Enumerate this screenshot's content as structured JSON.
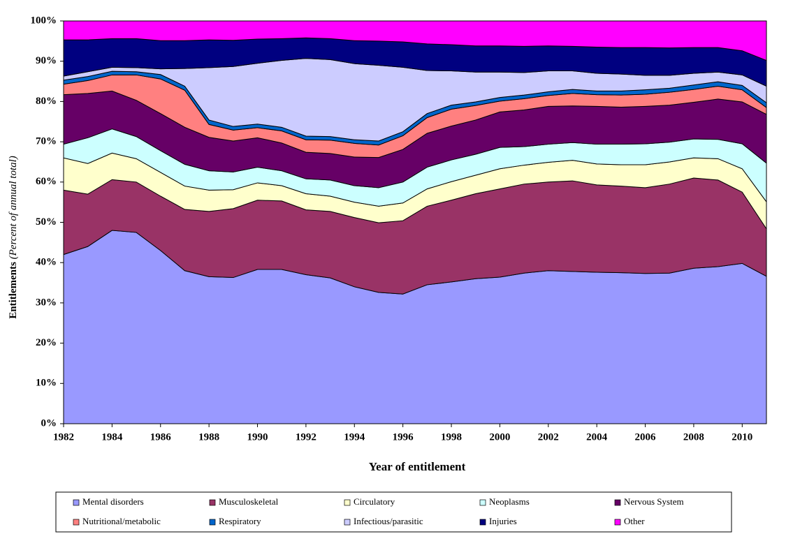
{
  "chart_data": {
    "type": "stacked_area_percent",
    "xlabel": "Year of entitlement",
    "ylabel": "Entitlements",
    "ylabel_unit": "(Percent of annual total)",
    "x": [
      1982,
      1983,
      1984,
      1985,
      1986,
      1987,
      1988,
      1989,
      1990,
      1991,
      1992,
      1993,
      1994,
      1995,
      1996,
      1997,
      1998,
      1999,
      2000,
      2001,
      2002,
      2003,
      2004,
      2005,
      2006,
      2007,
      2008,
      2009,
      2010,
      2011
    ],
    "xlim": [
      1982,
      2011
    ],
    "xticks": [
      1982,
      1984,
      1986,
      1988,
      1990,
      1992,
      1994,
      1996,
      1998,
      2000,
      2002,
      2004,
      2006,
      2008,
      2010
    ],
    "ylim": [
      0,
      100
    ],
    "yticks": [
      {
        "value": 0,
        "label": "0%"
      },
      {
        "value": 10,
        "label": "10%"
      },
      {
        "value": 20,
        "label": "20%"
      },
      {
        "value": 30,
        "label": "30%"
      },
      {
        "value": 40,
        "label": "40%"
      },
      {
        "value": 50,
        "label": "50%"
      },
      {
        "value": 60,
        "label": "60%"
      },
      {
        "value": 70,
        "label": "70%"
      },
      {
        "value": 80,
        "label": "80%"
      },
      {
        "value": 90,
        "label": "90%"
      },
      {
        "value": 100,
        "label": "100%"
      }
    ],
    "legend": "bottom",
    "series": [
      {
        "name": "Mental disorders",
        "color": "#9999ff",
        "values": [
          42,
          44,
          48,
          47.5,
          43,
          38,
          36.5,
          36.3,
          38.3,
          38.3,
          37,
          36.2,
          34,
          32.6,
          32.2,
          34.5,
          35.2,
          36,
          36.4,
          37.4,
          38,
          37.8,
          37.6,
          37.5,
          37.3,
          37.4,
          38.6,
          39,
          39.8,
          36.6
        ]
      },
      {
        "name": "Musculoskeletal",
        "color": "#993366",
        "values": [
          16,
          13,
          12.6,
          12.5,
          13.5,
          15.2,
          16.2,
          17.1,
          17.2,
          17,
          16.1,
          16.5,
          17.2,
          17.3,
          18.2,
          19.5,
          20.3,
          21.1,
          21.9,
          22.1,
          22,
          22.5,
          21.7,
          21.5,
          21.3,
          22.1,
          22.4,
          21.5,
          17.7,
          11.8
        ]
      },
      {
        "name": "Circulatory",
        "color": "#ffffcc",
        "values": [
          8,
          7.6,
          6.6,
          5.8,
          5.9,
          5.8,
          5.3,
          4.7,
          4.3,
          3.8,
          4,
          3.8,
          3.8,
          4.1,
          4.4,
          4.3,
          4.6,
          4.6,
          5,
          4.7,
          4.9,
          5.1,
          5.2,
          5.3,
          5.7,
          5.5,
          5,
          5.3,
          5.8,
          6.7
        ]
      },
      {
        "name": "Neoplasms",
        "color": "#ccffff",
        "values": [
          3.4,
          6.4,
          6,
          5.5,
          5.4,
          5.4,
          4.8,
          4.4,
          3.9,
          3.7,
          3.7,
          4,
          4.1,
          4.6,
          5.2,
          5.4,
          5.4,
          5.2,
          5.3,
          4.6,
          4.5,
          4.4,
          4.9,
          5.1,
          5.2,
          4.9,
          4.7,
          4.8,
          6.2,
          9.6
        ]
      },
      {
        "name": "Nervous System",
        "color": "#660066",
        "values": [
          12.3,
          11,
          9.4,
          9,
          9.2,
          9.2,
          8.3,
          7.7,
          7.3,
          6.9,
          6.6,
          6.6,
          7.1,
          7.5,
          8.1,
          8.4,
          8.4,
          8.5,
          8.8,
          9.1,
          9.4,
          9.1,
          9.4,
          9.2,
          9.3,
          9.2,
          9.1,
          10,
          10.4,
          12.1
        ]
      },
      {
        "name": "Nutritional/metabolic",
        "color": "#ff8080",
        "values": [
          2.6,
          3.2,
          4,
          6.3,
          8.6,
          9.2,
          3.2,
          2.7,
          2.5,
          3,
          3.1,
          3.3,
          3.4,
          3.1,
          3.4,
          3.9,
          4.2,
          3.6,
          2.7,
          2.8,
          2.7,
          3.1,
          2.9,
          3,
          3,
          3.2,
          3.2,
          3.2,
          3,
          1.7
        ]
      },
      {
        "name": "Respiratory",
        "color": "#0066cc",
        "values": [
          1,
          1,
          0.9,
          0.8,
          1.1,
          1,
          1.1,
          0.9,
          0.9,
          0.9,
          0.9,
          0.9,
          0.9,
          1,
          1,
          1,
          1,
          0.9,
          0.9,
          0.9,
          0.9,
          1,
          0.9,
          1,
          1.1,
          1,
          1.1,
          1.1,
          1.1,
          1.2
        ]
      },
      {
        "name": "Infectious/parasitic",
        "color": "#ccccff",
        "values": [
          1,
          1.2,
          1,
          1,
          1.4,
          4.4,
          13,
          14.9,
          15.1,
          16.6,
          19.3,
          19.1,
          18.9,
          18.8,
          16,
          10.7,
          8.5,
          7.4,
          6.3,
          5.6,
          5.2,
          4.6,
          4.4,
          4.2,
          3.6,
          3.2,
          2.9,
          2.4,
          2.6,
          4.1
        ]
      },
      {
        "name": "Injuries",
        "color": "#000080",
        "values": [
          9,
          7.9,
          7.1,
          7.2,
          7,
          6.9,
          6.9,
          6.5,
          6,
          5.4,
          5.1,
          5.2,
          5.7,
          6,
          6.3,
          6.6,
          6.5,
          6.5,
          6.5,
          6.5,
          6.2,
          6.1,
          6.5,
          6.6,
          6.9,
          6.8,
          6.4,
          6.1,
          6,
          6.4
        ]
      },
      {
        "name": "Other",
        "color": "#ff00ff",
        "values": [
          4.7,
          4.7,
          4.4,
          4.4,
          4.9,
          4.9,
          4.7,
          4.8,
          4.5,
          4.4,
          4.2,
          4.4,
          4.9,
          5,
          5.2,
          5.7,
          5.9,
          6.2,
          6.2,
          6.3,
          6.2,
          6.3,
          6.5,
          6.6,
          6.6,
          6.7,
          6.6,
          6.6,
          7.4,
          9.8
        ]
      }
    ]
  }
}
